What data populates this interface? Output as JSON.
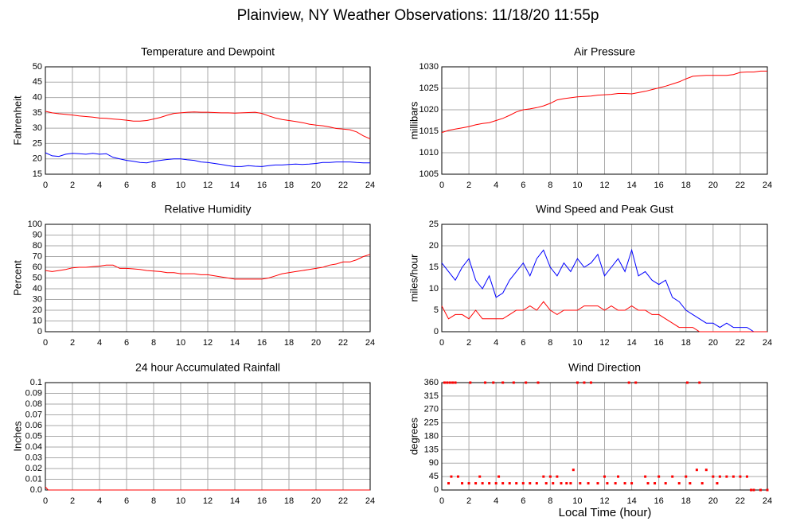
{
  "title": "Plainview, NY Weather Observations: 11/18/20 11:55p",
  "x_label": "Local Time (hour)",
  "chart_data": [
    {
      "type": "line",
      "title": "Temperature and Dewpoint",
      "y_label": "Fahrenheit",
      "xlim": [
        0,
        24
      ],
      "xticks": [
        0,
        2,
        4,
        6,
        8,
        10,
        12,
        14,
        16,
        18,
        20,
        22,
        24
      ],
      "ylim": [
        15,
        50
      ],
      "yticks": [
        15,
        20,
        25,
        30,
        35,
        40,
        45,
        50
      ],
      "grid": true,
      "x": [
        0,
        0.5,
        1,
        1.5,
        2,
        2.5,
        3,
        3.5,
        4,
        4.5,
        5,
        5.5,
        6,
        6.5,
        7,
        7.5,
        8,
        8.5,
        9,
        9.5,
        10,
        10.5,
        11,
        11.5,
        12,
        12.5,
        13,
        13.5,
        14,
        14.5,
        15,
        15.5,
        16,
        16.5,
        17,
        17.5,
        18,
        18.5,
        19,
        19.5,
        20,
        20.5,
        21,
        21.5,
        22,
        22.5,
        23,
        23.5,
        24
      ],
      "series": [
        {
          "color": "#ff0000",
          "values": [
            35.5,
            35,
            34.7,
            34.5,
            34.3,
            34,
            33.8,
            33.6,
            33.3,
            33.2,
            33,
            32.8,
            32.6,
            32.3,
            32.3,
            32.5,
            33,
            33.5,
            34.2,
            34.8,
            35,
            35.2,
            35.3,
            35.2,
            35.2,
            35.1,
            35,
            35,
            34.9,
            35,
            35.1,
            35.2,
            34.8,
            34,
            33.3,
            32.8,
            32.5,
            32.2,
            31.8,
            31.3,
            31,
            30.8,
            30.4,
            29.9,
            29.7,
            29.5,
            28.8,
            27.5,
            26.5
          ]
        },
        {
          "color": "#0000ff",
          "values": [
            22,
            21,
            20.8,
            21.5,
            21.8,
            21.7,
            21.5,
            21.8,
            21.5,
            21.7,
            20.5,
            20,
            19.5,
            19.2,
            18.8,
            18.7,
            19.2,
            19.5,
            19.8,
            20,
            20,
            19.7,
            19.5,
            19,
            18.8,
            18.5,
            18.2,
            17.8,
            17.5,
            17.5,
            17.8,
            17.6,
            17.5,
            17.8,
            18,
            18,
            18.2,
            18.3,
            18.2,
            18.3,
            18.5,
            18.8,
            18.8,
            19,
            19,
            19,
            18.8,
            18.7,
            18.7
          ]
        }
      ]
    },
    {
      "type": "line",
      "title": "Air Pressure",
      "y_label": "millibars",
      "xlim": [
        0,
        24
      ],
      "xticks": [
        0,
        2,
        4,
        6,
        8,
        10,
        12,
        14,
        16,
        18,
        20,
        22,
        24
      ],
      "ylim": [
        1005,
        1030
      ],
      "yticks": [
        1005,
        1010,
        1015,
        1020,
        1025,
        1030
      ],
      "grid": true,
      "x": [
        0,
        0.5,
        1,
        1.5,
        2,
        2.5,
        3,
        3.5,
        4,
        4.5,
        5,
        5.5,
        6,
        6.5,
        7,
        7.5,
        8,
        8.5,
        9,
        9.5,
        10,
        10.5,
        11,
        11.5,
        12,
        12.5,
        13,
        13.5,
        14,
        14.5,
        15,
        15.5,
        16,
        16.5,
        17,
        17.5,
        18,
        18.5,
        19,
        19.5,
        20,
        20.5,
        21,
        21.5,
        22,
        22.5,
        23,
        23.5,
        24
      ],
      "series": [
        {
          "color": "#ff0000",
          "values": [
            1014.7,
            1015.2,
            1015.5,
            1015.8,
            1016.1,
            1016.5,
            1016.8,
            1017,
            1017.5,
            1018,
            1018.7,
            1019.5,
            1020,
            1020.2,
            1020.5,
            1020.9,
            1021.5,
            1022.3,
            1022.6,
            1022.8,
            1023,
            1023.1,
            1023.2,
            1023.4,
            1023.5,
            1023.6,
            1023.8,
            1023.8,
            1023.7,
            1024,
            1024.3,
            1024.7,
            1025.1,
            1025.5,
            1026,
            1026.5,
            1027.2,
            1027.8,
            1027.9,
            1028,
            1028,
            1028,
            1028,
            1028.2,
            1028.7,
            1028.8,
            1028.8,
            1029,
            1029
          ]
        }
      ]
    },
    {
      "type": "line",
      "title": "Relative Humidity",
      "y_label": "Percent",
      "xlim": [
        0,
        24
      ],
      "xticks": [
        0,
        2,
        4,
        6,
        8,
        10,
        12,
        14,
        16,
        18,
        20,
        22,
        24
      ],
      "ylim": [
        0,
        100
      ],
      "yticks": [
        0,
        10,
        20,
        30,
        40,
        50,
        60,
        70,
        80,
        90,
        100
      ],
      "grid": true,
      "x": [
        0,
        0.5,
        1,
        1.5,
        2,
        2.5,
        3,
        3.5,
        4,
        4.5,
        5,
        5.5,
        6,
        6.5,
        7,
        7.5,
        8,
        8.5,
        9,
        9.5,
        10,
        10.5,
        11,
        11.5,
        12,
        12.5,
        13,
        13.5,
        14,
        14.5,
        15,
        15.5,
        16,
        16.5,
        17,
        17.5,
        18,
        18.5,
        19,
        19.5,
        20,
        20.5,
        21,
        21.5,
        22,
        22.5,
        23,
        23.5,
        24
      ],
      "series": [
        {
          "color": "#ff0000",
          "values": [
            57,
            56,
            57,
            58,
            59.5,
            60,
            60,
            60.5,
            61,
            62,
            62,
            59,
            59,
            58.5,
            58,
            57,
            56.5,
            56,
            55,
            55,
            54,
            54,
            54,
            53,
            53,
            52,
            51,
            50,
            49,
            49,
            49,
            49,
            49,
            50,
            52,
            54,
            55,
            56,
            57,
            58,
            59,
            60,
            62,
            63,
            65,
            65,
            67,
            70,
            72
          ]
        }
      ]
    },
    {
      "type": "line",
      "title": "Wind Speed and Peak Gust",
      "y_label": "miles/hour",
      "xlim": [
        0,
        24
      ],
      "xticks": [
        0,
        2,
        4,
        6,
        8,
        10,
        12,
        14,
        16,
        18,
        20,
        22,
        24
      ],
      "ylim": [
        0,
        25
      ],
      "yticks": [
        0,
        5,
        10,
        15,
        20,
        25
      ],
      "grid": true,
      "x": [
        0,
        0.5,
        1,
        1.5,
        2,
        2.5,
        3,
        3.5,
        4,
        4.5,
        5,
        5.5,
        6,
        6.5,
        7,
        7.5,
        8,
        8.5,
        9,
        9.5,
        10,
        10.5,
        11,
        11.5,
        12,
        12.5,
        13,
        13.5,
        14,
        14.5,
        15,
        15.5,
        16,
        16.5,
        17,
        17.5,
        18,
        18.5,
        19,
        19.5,
        20,
        20.5,
        21,
        21.5,
        22,
        22.5,
        23,
        23.5,
        24
      ],
      "series": [
        {
          "color": "#0000ff",
          "values": [
            16,
            14,
            12,
            15,
            17,
            12,
            10,
            13,
            8,
            9,
            12,
            14,
            16,
            13,
            17,
            19,
            15,
            13,
            16,
            14,
            17,
            15,
            16,
            18,
            13,
            15,
            17,
            14,
            19,
            13,
            14,
            12,
            11,
            12,
            8,
            7,
            5,
            4,
            3,
            2,
            2,
            1,
            2,
            1,
            1,
            1,
            0,
            0,
            0
          ]
        },
        {
          "color": "#ff0000",
          "values": [
            6,
            3,
            4,
            4,
            3,
            5,
            3,
            3,
            3,
            3,
            4,
            5,
            5,
            6,
            5,
            7,
            5,
            4,
            5,
            5,
            5,
            6,
            6,
            6,
            5,
            6,
            5,
            5,
            6,
            5,
            5,
            4,
            4,
            3,
            2,
            1,
            1,
            1,
            0,
            0,
            0,
            0,
            0,
            0,
            0,
            0,
            0,
            0,
            0
          ]
        }
      ]
    },
    {
      "type": "line",
      "title": "24 hour Accumulated Rainfall",
      "y_label": "Inches",
      "xlim": [
        0,
        24
      ],
      "xticks": [
        0,
        2,
        4,
        6,
        8,
        10,
        12,
        14,
        16,
        18,
        20,
        22,
        24
      ],
      "ylim": [
        0,
        0.1
      ],
      "yticks": [
        {
          "value": 0,
          "label": "0.0"
        },
        0.01,
        0.02,
        0.03,
        0.04,
        0.05,
        0.06,
        0.07,
        0.08,
        0.09,
        0.1
      ],
      "grid": true,
      "x": [
        0,
        0.2,
        24
      ],
      "series": [
        {
          "color": "#ff0000",
          "values": [
            0.003,
            0,
            0
          ]
        }
      ]
    },
    {
      "type": "scatter",
      "title": "Wind Direction",
      "y_label": "degrees",
      "xlim": [
        0,
        24
      ],
      "xticks": [
        0,
        2,
        4,
        6,
        8,
        10,
        12,
        14,
        16,
        18,
        20,
        22,
        24
      ],
      "ylim": [
        0,
        360
      ],
      "yticks": [
        0,
        45,
        90,
        135,
        180,
        225,
        270,
        315,
        360
      ],
      "grid": true,
      "x": [
        0.2,
        0.4,
        0.6,
        0.8,
        1.0,
        0.5,
        0.7,
        1.5,
        2,
        2.5,
        3,
        3.5,
        4,
        4.5,
        5,
        5.5,
        6,
        6.5,
        7,
        2.1,
        3.2,
        3.8,
        4.5,
        5.3,
        6.2,
        7.1,
        1.2,
        2.8,
        4.2,
        7.5,
        8,
        8.5,
        7.7,
        8.2,
        8.8,
        9.2,
        9.7,
        10,
        10.5,
        11,
        9.5,
        10.2,
        10.8,
        11.5,
        12.2,
        12.8,
        13.5,
        14,
        13.8,
        14.3,
        12,
        13,
        15,
        16,
        17,
        18,
        15.2,
        15.7,
        16.5,
        17.5,
        18.1,
        18.3,
        18.8,
        19,
        19.2,
        19.5,
        20,
        20.5,
        21,
        21.5,
        22,
        22.5,
        20.3,
        22.8,
        23,
        23.5,
        24
      ],
      "series": [
        {
          "color": "#ff0000",
          "values": [
            360,
            360,
            360,
            360,
            360,
            22.5,
            45,
            22.5,
            22.5,
            22.5,
            22.5,
            22.5,
            22.5,
            22.5,
            22.5,
            22.5,
            22.5,
            22.5,
            22.5,
            360,
            360,
            360,
            360,
            360,
            360,
            360,
            45,
            45,
            45,
            45,
            45,
            45,
            22.5,
            22.5,
            22.5,
            22.5,
            67.5,
            360,
            360,
            360,
            22.5,
            22.5,
            22.5,
            22.5,
            22.5,
            22.5,
            22.5,
            22.5,
            360,
            360,
            45,
            45,
            45,
            45,
            45,
            45,
            22.5,
            22.5,
            22.5,
            22.5,
            360,
            22.5,
            67.5,
            360,
            22.5,
            67.5,
            45,
            45,
            45,
            45,
            45,
            45,
            22.5,
            0,
            0,
            0,
            0
          ]
        }
      ]
    }
  ]
}
